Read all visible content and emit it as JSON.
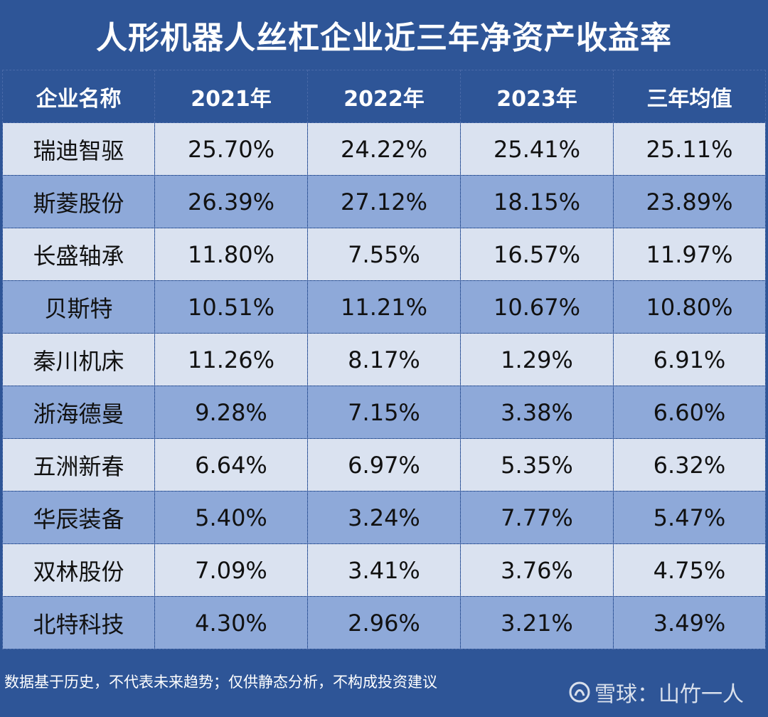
{
  "title": "人形机器人丝杠企业近三年净资产收益率",
  "table": {
    "headers": [
      "企业名称",
      "2021年",
      "2022年",
      "2023年",
      "三年均值"
    ],
    "rows": [
      [
        "瑞迪智驱",
        "25.70%",
        "24.22%",
        "25.41%",
        "25.11%"
      ],
      [
        "斯菱股份",
        "26.39%",
        "27.12%",
        "18.15%",
        "23.89%"
      ],
      [
        "长盛轴承",
        "11.80%",
        "7.55%",
        "16.57%",
        "11.97%"
      ],
      [
        "贝斯特",
        "10.51%",
        "11.21%",
        "10.67%",
        "10.80%"
      ],
      [
        "秦川机床",
        "11.26%",
        "8.17%",
        "1.29%",
        "6.91%"
      ],
      [
        "浙海德曼",
        "9.28%",
        "7.15%",
        "3.38%",
        "6.60%"
      ],
      [
        "五洲新春",
        "6.64%",
        "6.97%",
        "5.35%",
        "6.32%"
      ],
      [
        "华辰装备",
        "5.40%",
        "3.24%",
        "7.77%",
        "5.47%"
      ],
      [
        "双林股份",
        "7.09%",
        "3.41%",
        "3.76%",
        "4.75%"
      ],
      [
        "北特科技",
        "4.30%",
        "2.96%",
        "3.21%",
        "3.49%"
      ]
    ]
  },
  "footer": {
    "note": "数据基于历史，不代表未来趋势；仅供静态分析，不构成投资建议"
  },
  "watermark": {
    "text": "雪球：山竹一人",
    "icon": "snowball-logo-icon"
  },
  "colors": {
    "background": "#2e5597",
    "row_light": "#dae2f0",
    "row_dark": "#8ea9d9"
  }
}
